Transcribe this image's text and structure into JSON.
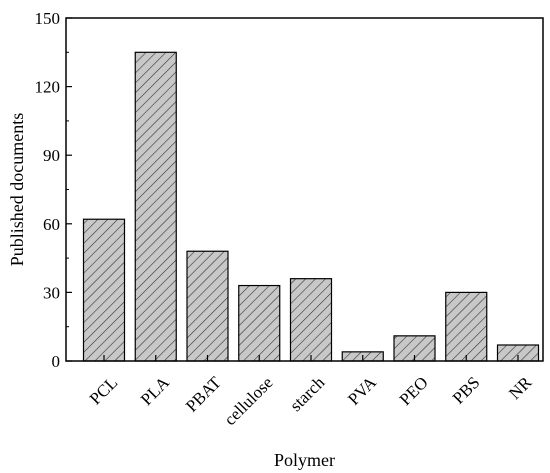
{
  "chart_data": {
    "type": "bar",
    "categories": [
      "PCL",
      "PLA",
      "PBAT",
      "cellulose",
      "starch",
      "PVA",
      "PEO",
      "PBS",
      "NR"
    ],
    "values": [
      62,
      135,
      48,
      33,
      36,
      4,
      11,
      30,
      7
    ],
    "xlabel": "Polymer",
    "ylabel": "Published documents",
    "ylim": [
      0,
      150
    ],
    "yticks": [
      0,
      30,
      60,
      90,
      120,
      150
    ],
    "grid": false,
    "legend": "none",
    "bar_fill": "#c8c8c8",
    "hatch_color": "#333333",
    "edge_color": "#000000"
  }
}
